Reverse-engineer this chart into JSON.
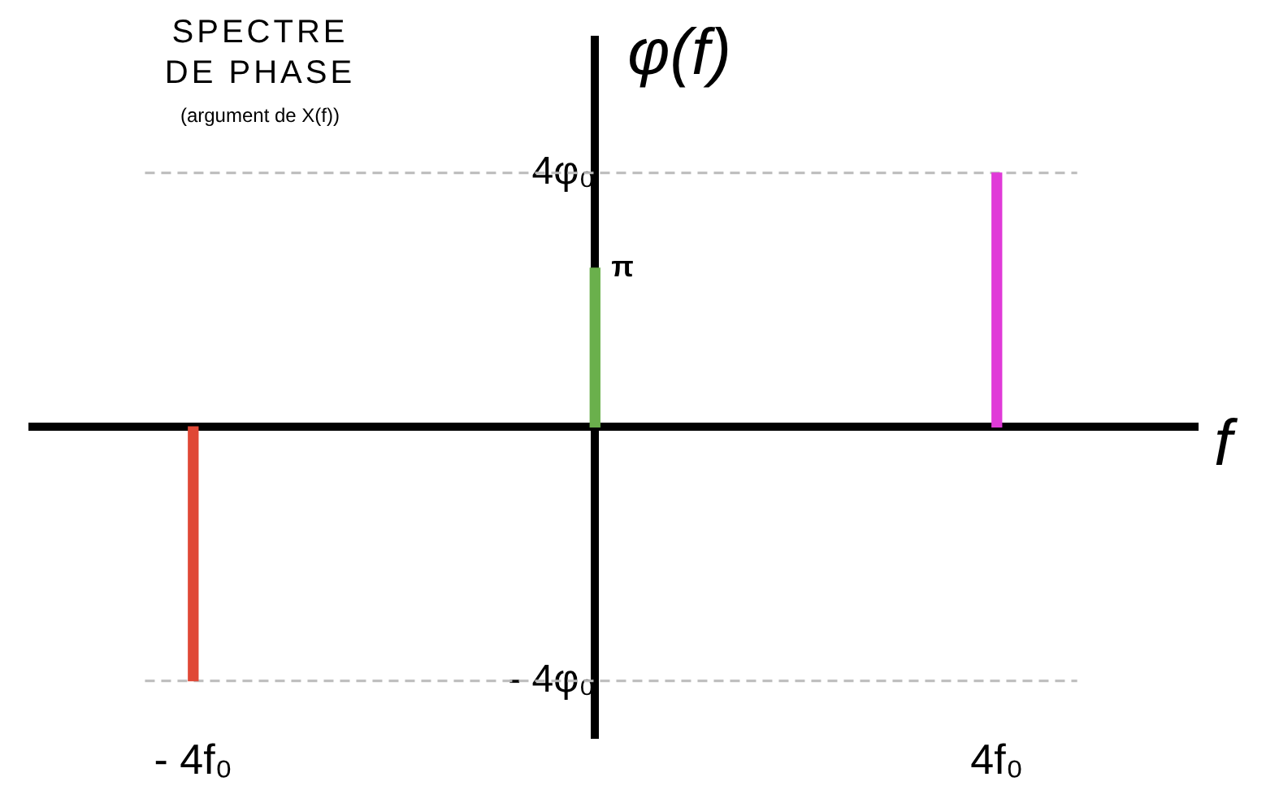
{
  "chart_data": {
    "type": "bar",
    "title": "SPECTRE DE PHASE",
    "subtitle": "(argument de X(f))",
    "xlabel": "f",
    "ylabel": "φ(f)",
    "x": [
      -4,
      0,
      4
    ],
    "values": [
      -4,
      2.5,
      4
    ],
    "colors": [
      "#e04836",
      "#6ab04c",
      "#e03ad8"
    ],
    "annotations": [
      {
        "text": "π",
        "x": 0,
        "y": 2.5
      }
    ],
    "xlim": [
      -5.6,
      6
    ],
    "ylim": [
      -4.9,
      6.1
    ],
    "xticks": [
      {
        "value": -4,
        "label": "- 4f₀"
      },
      {
        "value": 4,
        "label": "4f₀"
      }
    ],
    "yticks": [
      {
        "value": 4,
        "label": "4φ₀"
      },
      {
        "value": -4,
        "label": "- 4φ₀"
      }
    ],
    "ref_lines": [
      {
        "axis": "y",
        "value": 4,
        "color": "#bbbbbb",
        "line_style": "dashed"
      },
      {
        "axis": "y",
        "value": -4,
        "color": "#bbbbbb",
        "line_style": "dashed"
      }
    ],
    "grid": false,
    "legend": false
  }
}
